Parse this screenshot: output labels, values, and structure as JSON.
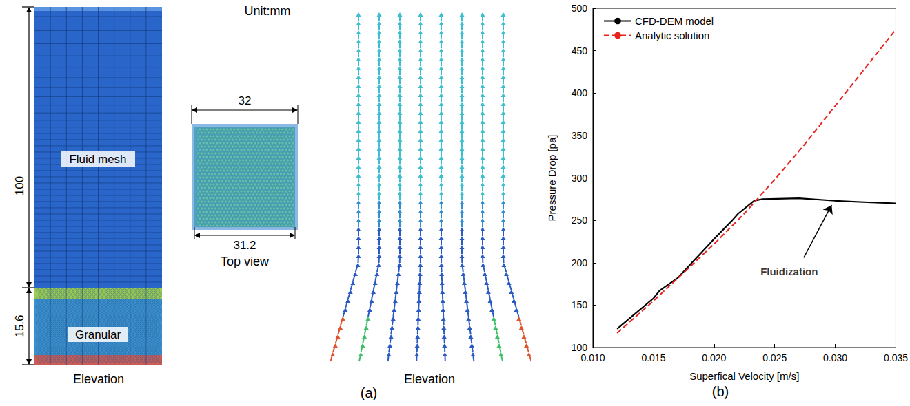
{
  "diagram": {
    "label": "(a)",
    "unit": "Unit:mm",
    "elevation_mesh": {
      "caption": "Elevation",
      "height": 100,
      "granular_height": 15.6,
      "labels": [
        "Fluid mesh",
        "Granular"
      ]
    },
    "top_view": {
      "caption": "Top view",
      "outer_width": 32,
      "inner_width": 31.2
    },
    "velocity_field": {
      "caption": "Elevation"
    }
  },
  "chart_data": {
    "type": "line",
    "label": "(b)",
    "x_label": "Superfical Velocity [m/s]",
    "y_label": "Pressure Drop [pa]",
    "xlim": [
      0.01,
      0.035
    ],
    "xticks": [
      {
        "value": 0.01,
        "label": "0.010"
      },
      {
        "value": 0.015,
        "label": "0.015"
      },
      {
        "value": 0.02,
        "label": "0.020"
      },
      {
        "value": 0.025,
        "label": "0.025"
      },
      {
        "value": 0.03,
        "label": "0.030"
      },
      {
        "value": 0.035,
        "label": "0.035"
      }
    ],
    "ylim": [
      100,
      500
    ],
    "yticks": [
      100,
      150,
      200,
      250,
      300,
      350,
      400,
      450,
      500
    ],
    "grid": false,
    "legend": "upper left",
    "series": [
      {
        "name": "CFD-DEM model",
        "color": "#000000",
        "line_style": "solid",
        "x": [
          0.012,
          0.0135,
          0.015,
          0.0155,
          0.017,
          0.0185,
          0.02,
          0.0215,
          0.022,
          0.0233,
          0.024,
          0.027,
          0.03,
          0.033,
          0.035
        ],
        "values": [
          122,
          140,
          158,
          167,
          182,
          205,
          228,
          250,
          258,
          273,
          275,
          276,
          273,
          271,
          270
        ]
      },
      {
        "name": "Analytic solution",
        "color": "#e8231e",
        "line_style": "dashed",
        "x": [
          0.012,
          0.015,
          0.018,
          0.02,
          0.0225,
          0.025,
          0.0275,
          0.03,
          0.0325,
          0.035
        ],
        "values": [
          117,
          155,
          195,
          222,
          258,
          298,
          340,
          385,
          430,
          475
        ]
      }
    ],
    "annotations": [
      {
        "text": "Fluidization",
        "x": 0.0262,
        "y": 200,
        "arrow_x": 0.0297,
        "arrow_y": 268
      }
    ]
  }
}
